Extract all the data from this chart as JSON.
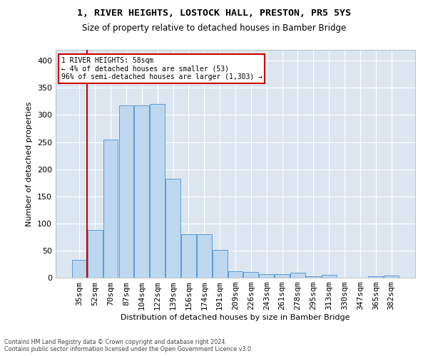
{
  "title": "1, RIVER HEIGHTS, LOSTOCK HALL, PRESTON, PR5 5YS",
  "subtitle": "Size of property relative to detached houses in Bamber Bridge",
  "xlabel": "Distribution of detached houses by size in Bamber Bridge",
  "ylabel": "Number of detached properties",
  "categories": [
    "35sqm",
    "52sqm",
    "70sqm",
    "87sqm",
    "104sqm",
    "122sqm",
    "139sqm",
    "156sqm",
    "174sqm",
    "191sqm",
    "209sqm",
    "226sqm",
    "243sqm",
    "261sqm",
    "278sqm",
    "295sqm",
    "313sqm",
    "330sqm",
    "347sqm",
    "365sqm",
    "382sqm"
  ],
  "values": [
    33,
    88,
    255,
    318,
    318,
    320,
    183,
    80,
    80,
    51,
    12,
    10,
    6,
    7,
    9,
    2,
    5,
    0,
    0,
    2,
    4
  ],
  "bar_color": "#bdd7ee",
  "bar_edge_color": "#5b9bd5",
  "bg_color": "#dce6f1",
  "grid_color": "#ffffff",
  "vline_color": "#cc0000",
  "ylim_max": 420,
  "yticks": [
    0,
    50,
    100,
    150,
    200,
    250,
    300,
    350,
    400
  ],
  "vline_pos": 0.5,
  "annotation_line1": "1 RIVER HEIGHTS: 58sqm",
  "annotation_line2": "← 4% of detached houses are smaller (53)",
  "annotation_line3": "96% of semi-detached houses are larger (1,303) →",
  "footer": "Contains HM Land Registry data © Crown copyright and database right 2024.\nContains public sector information licensed under the Open Government Licence v3.0."
}
